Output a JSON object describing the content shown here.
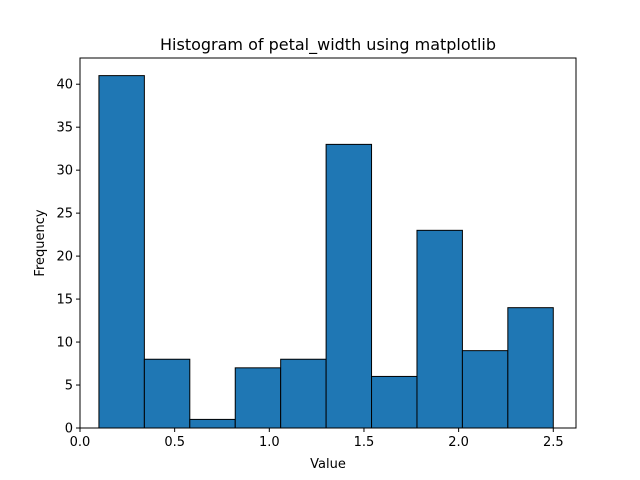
{
  "chart_data": {
    "type": "bar",
    "title": "Histogram of petal_width using matplotlib",
    "xlabel": "Value",
    "ylabel": "Frequency",
    "bin_edges": [
      0.1,
      0.34,
      0.58,
      0.82,
      1.06,
      1.3,
      1.54,
      1.78,
      2.02,
      2.26,
      2.5
    ],
    "values": [
      41,
      8,
      1,
      7,
      8,
      33,
      6,
      23,
      9,
      14
    ],
    "xlim": [
      0.0,
      2.62
    ],
    "ylim": [
      0,
      43.05
    ],
    "x_ticks": [
      0.0,
      0.5,
      1.0,
      1.5,
      2.0,
      2.5
    ],
    "x_tick_labels": [
      "0.0",
      "0.5",
      "1.0",
      "1.5",
      "2.0",
      "2.5"
    ],
    "y_ticks": [
      0,
      5,
      10,
      15,
      20,
      25,
      30,
      35,
      40
    ],
    "y_tick_labels": [
      "0",
      "5",
      "10",
      "15",
      "20",
      "25",
      "30",
      "35",
      "40"
    ],
    "bar_color": "#1f77b4",
    "edge_color": "#000000",
    "grid": false,
    "legend": "none"
  }
}
